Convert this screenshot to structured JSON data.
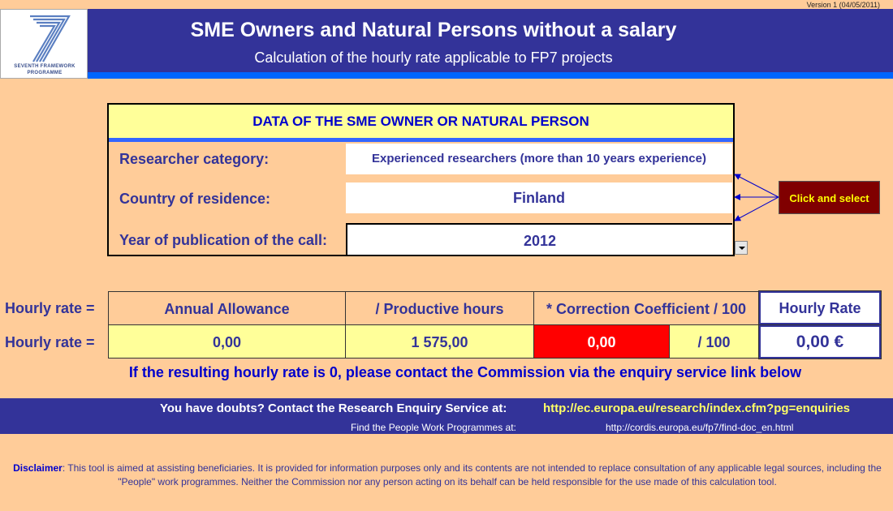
{
  "version": "Version 1 (04/05/2011)",
  "header": {
    "logo_line1": "SEVENTH FRAMEWORK",
    "logo_line2": "PROGRAMME",
    "title": "SME Owners and Natural Persons without a salary",
    "subtitle": "Calculation of the hourly rate applicable to FP7 projects"
  },
  "data_section": {
    "heading": "DATA OF THE SME OWNER OR NATURAL PERSON",
    "researcher_category_label": "Researcher category:",
    "researcher_category_value": "Experienced researchers (more than 10 years experience)",
    "country_label": "Country of residence:",
    "country_value": "Finland",
    "year_label": "Year of publication of the call:",
    "year_value": "2012",
    "click_and_select": "Click and select"
  },
  "rate_table": {
    "row_label": "Hourly rate =",
    "headers": {
      "annual_allowance": "Annual Allowance",
      "productive_hours": "/ Productive hours",
      "correction_coefficient": "* Correction Coefficient / 100",
      "hourly_rate": "Hourly Rate"
    },
    "values": {
      "annual_allowance": "0,00",
      "productive_hours": "1 575,00",
      "correction_coefficient": "0,00",
      "per_hundred": "/ 100",
      "hourly_rate": "0,00 €"
    }
  },
  "note": "If the resulting hourly rate is 0, please contact the Commission via the enquiry service link below",
  "contact": {
    "label": "You have doubts? Contact the Research Enquiry Service at:",
    "link": "http://ec.europa.eu/research/index.cfm?pg=enquiries",
    "people_label": "Find the People Work Programmes at:",
    "people_link": "http://cordis.europa.eu/fp7/find-doc_en.html"
  },
  "disclaimer": {
    "label": "Disclaimer",
    "text": ": This tool is aimed at assisting beneficiaries. It is provided for information purposes only and its contents are not intended to replace consultation of any applicable legal sources, including the \"People\" work programmes. Neither the Commission nor any person acting on its behalf can be held responsible for the use made of this calculation tool."
  },
  "colors": {
    "background": "#ffcc99",
    "header_band": "#333399",
    "accent_blue": "#0066ff",
    "highlight_yellow": "#ffff99",
    "alert_red": "#ff0000",
    "button_maroon": "#800000"
  },
  "icons": [
    "fp7-logo-icon",
    "dropdown-arrow-icon",
    "pointer-arrows-icon"
  ]
}
